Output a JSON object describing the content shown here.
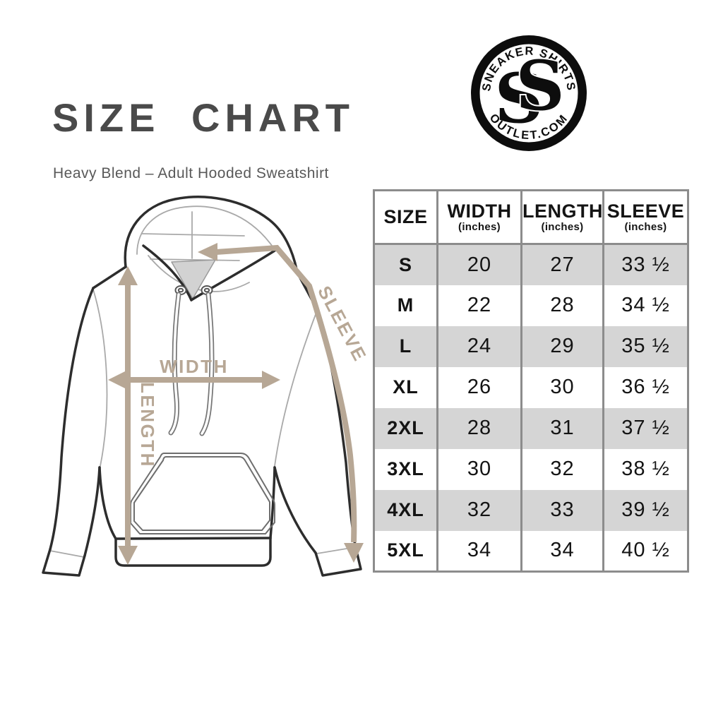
{
  "title": "SIZE CHART",
  "subtitle": "Heavy Blend – Adult Hooded Sweatshirt",
  "logo": {
    "arc_top": "SNEAKER SHIRTS",
    "arc_bottom": "OUTLET.COM",
    "monogram": "SS"
  },
  "diagram": {
    "width_label": "WIDTH",
    "length_label": "LENGTH",
    "sleeve_label": "SLEEVE",
    "arrow_color": "#b7a795"
  },
  "table": {
    "border_color": "#8c8c8c",
    "alt_row_color": "#d5d5d5",
    "columns": [
      {
        "label": "SIZE",
        "sub": ""
      },
      {
        "label": "WIDTH",
        "sub": "(inches)"
      },
      {
        "label": "LENGTH",
        "sub": "(inches)"
      },
      {
        "label": "SLEEVE",
        "sub": "(inches)"
      }
    ],
    "rows": [
      {
        "size": "S",
        "width": "20",
        "length": "27",
        "sleeve": "33 ½"
      },
      {
        "size": "M",
        "width": "22",
        "length": "28",
        "sleeve": "34 ½"
      },
      {
        "size": "L",
        "width": "24",
        "length": "29",
        "sleeve": "35 ½"
      },
      {
        "size": "XL",
        "width": "26",
        "length": "30",
        "sleeve": "36 ½"
      },
      {
        "size": "2XL",
        "width": "28",
        "length": "31",
        "sleeve": "37 ½"
      },
      {
        "size": "3XL",
        "width": "30",
        "length": "32",
        "sleeve": "38 ½"
      },
      {
        "size": "4XL",
        "width": "32",
        "length": "33",
        "sleeve": "39 ½"
      },
      {
        "size": "5XL",
        "width": "34",
        "length": "34",
        "sleeve": "40 ½"
      }
    ]
  },
  "chart_data": {
    "type": "table",
    "title": "SIZE CHART",
    "subtitle": "Heavy Blend – Adult Hooded Sweatshirt",
    "columns": [
      "SIZE",
      "WIDTH (inches)",
      "LENGTH (inches)",
      "SLEEVE (inches)"
    ],
    "rows": [
      [
        "S",
        20,
        27,
        33.5
      ],
      [
        "M",
        22,
        28,
        34.5
      ],
      [
        "L",
        24,
        29,
        35.5
      ],
      [
        "XL",
        26,
        30,
        36.5
      ],
      [
        "2XL",
        28,
        31,
        37.5
      ],
      [
        "3XL",
        30,
        32,
        38.5
      ],
      [
        "4XL",
        32,
        33,
        39.5
      ],
      [
        "5XL",
        34,
        34,
        40.5
      ]
    ],
    "annotations": [
      "WIDTH",
      "LENGTH",
      "SLEEVE"
    ],
    "units": "inches"
  }
}
